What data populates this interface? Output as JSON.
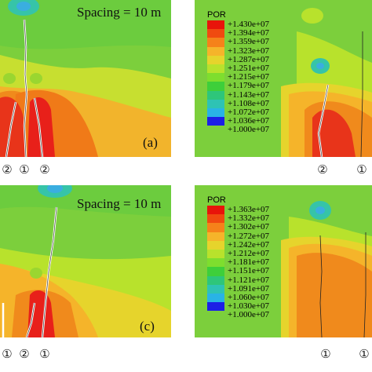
{
  "panels": [
    {
      "id": "a",
      "spacing_label": "Spacing = 10 m",
      "sub_label": "(a)"
    },
    {
      "id": "b",
      "legend_title": "POR",
      "legend_values": [
        "+1.430e+07",
        "+1.394e+07",
        "+1.359e+07",
        "+1.323e+07",
        "+1.287e+07",
        "+1.251e+07",
        "+1.215e+07",
        "+1.179e+07",
        "+1.143e+07",
        "+1.108e+07",
        "+1.072e+07",
        "+1.036e+07",
        "+1.000e+07"
      ]
    },
    {
      "id": "c",
      "spacing_label": "Spacing = 10 m",
      "sub_label": "(c)"
    },
    {
      "id": "d",
      "legend_title": "POR",
      "legend_values": [
        "+1.363e+07",
        "+1.332e+07",
        "+1.302e+07",
        "+1.272e+07",
        "+1.242e+07",
        "+1.212e+07",
        "+1.181e+07",
        "+1.151e+07",
        "+1.121e+07",
        "+1.091e+07",
        "+1.060e+07",
        "+1.030e+07",
        "+1.000e+07"
      ]
    }
  ],
  "legend_colors": [
    "#e8140a",
    "#f04a10",
    "#f5821a",
    "#f5b42a",
    "#e6d42c",
    "#b8e22c",
    "#7ede2e",
    "#3ecf3a",
    "#2ec67a",
    "#2ec3b4",
    "#29b3e6",
    "#2a6ef0",
    "#1c1fe6"
  ],
  "markers_top": [
    "②",
    "①",
    "②",
    "②",
    "①"
  ],
  "markers_bottom": [
    "①",
    "②",
    "①",
    "①",
    "①"
  ]
}
